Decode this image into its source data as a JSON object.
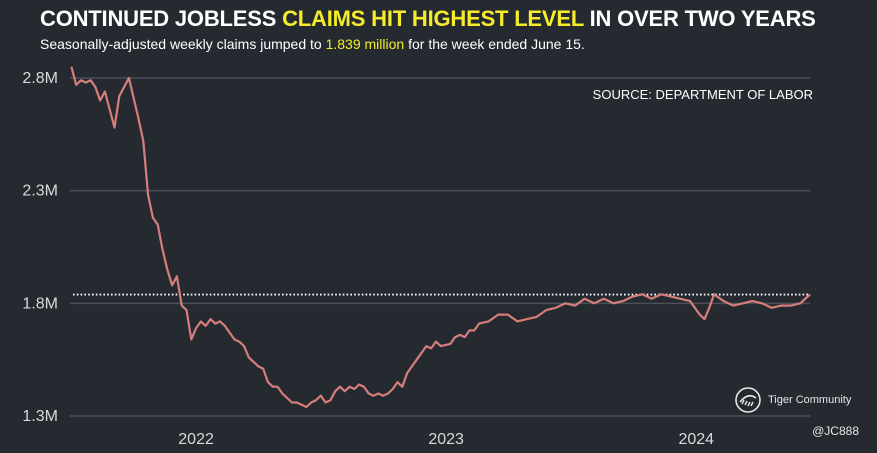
{
  "header": {
    "title_a": "CONTINUED JOBLESS ",
    "title_hl": "CLAIMS HIT HIGHEST LEVEL",
    "title_b": " IN OVER TWO YEARS",
    "subtitle_a": "Seasonally-adjusted weekly claims jumped to ",
    "subtitle_hl": "1.839 million",
    "subtitle_b": " for the week ended June 15."
  },
  "source": "SOURCE: DEPARTMENT OF LABOR",
  "watermark": {
    "brand": "Tiger Community",
    "logo_icon": "tiger-community-logo-icon"
  },
  "handle": "@JC888",
  "colors": {
    "background": "#252a31",
    "line": "#d67e7b",
    "highlight": "#f5ec2c",
    "grid": "#4b5058",
    "reference": "#ffffff"
  },
  "chart_data": {
    "type": "line",
    "title": "CONTINUED JOBLESS CLAIMS HIT HIGHEST LEVEL IN OVER TWO YEARS",
    "subtitle": "Seasonally-adjusted weekly claims jumped to 1.839 million for the week ended June 15.",
    "ylim": [
      1.3,
      2.8
    ],
    "yticks": [
      1.3,
      1.8,
      2.3,
      2.8
    ],
    "ytick_labels": [
      "1.3M",
      "1.8M",
      "2.3M",
      "2.8M"
    ],
    "x_range": [
      "2021-07-01",
      "2024-06-15"
    ],
    "xticks": [
      "2022-01-01",
      "2023-01-01",
      "2024-01-01"
    ],
    "xtick_labels": [
      "2022",
      "2023",
      "2024"
    ],
    "reference_line": {
      "value": 1.839,
      "style": "dotted"
    },
    "grid": "horizontal",
    "series": [
      {
        "values": [
          [
            "2021-07-03",
            2.85
          ],
          [
            "2021-07-10",
            2.77
          ],
          [
            "2021-07-17",
            2.79
          ],
          [
            "2021-07-24",
            2.78
          ],
          [
            "2021-07-31",
            2.79
          ],
          [
            "2021-08-07",
            2.76
          ],
          [
            "2021-08-14",
            2.7
          ],
          [
            "2021-08-21",
            2.74
          ],
          [
            "2021-08-28",
            2.66
          ],
          [
            "2021-09-04",
            2.58
          ],
          [
            "2021-09-11",
            2.72
          ],
          [
            "2021-09-18",
            2.76
          ],
          [
            "2021-09-25",
            2.8
          ],
          [
            "2021-10-02",
            2.71
          ],
          [
            "2021-10-09",
            2.62
          ],
          [
            "2021-10-16",
            2.52
          ],
          [
            "2021-10-23",
            2.28
          ],
          [
            "2021-10-30",
            2.18
          ],
          [
            "2021-11-06",
            2.15
          ],
          [
            "2021-11-13",
            2.04
          ],
          [
            "2021-11-20",
            1.95
          ],
          [
            "2021-11-27",
            1.88
          ],
          [
            "2021-12-04",
            1.92
          ],
          [
            "2021-12-11",
            1.79
          ],
          [
            "2021-12-18",
            1.77
          ],
          [
            "2021-12-25",
            1.64
          ],
          [
            "2022-01-01",
            1.69
          ],
          [
            "2022-01-08",
            1.72
          ],
          [
            "2022-01-15",
            1.7
          ],
          [
            "2022-01-22",
            1.73
          ],
          [
            "2022-01-29",
            1.71
          ],
          [
            "2022-02-05",
            1.72
          ],
          [
            "2022-02-12",
            1.7
          ],
          [
            "2022-02-19",
            1.67
          ],
          [
            "2022-02-26",
            1.64
          ],
          [
            "2022-03-05",
            1.63
          ],
          [
            "2022-03-12",
            1.61
          ],
          [
            "2022-03-19",
            1.56
          ],
          [
            "2022-03-26",
            1.54
          ],
          [
            "2022-04-02",
            1.52
          ],
          [
            "2022-04-09",
            1.51
          ],
          [
            "2022-04-16",
            1.45
          ],
          [
            "2022-04-23",
            1.43
          ],
          [
            "2022-04-30",
            1.43
          ],
          [
            "2022-05-07",
            1.4
          ],
          [
            "2022-05-14",
            1.38
          ],
          [
            "2022-05-21",
            1.36
          ],
          [
            "2022-05-28",
            1.36
          ],
          [
            "2022-06-04",
            1.35
          ],
          [
            "2022-06-11",
            1.34
          ],
          [
            "2022-06-18",
            1.36
          ],
          [
            "2022-06-25",
            1.37
          ],
          [
            "2022-07-02",
            1.39
          ],
          [
            "2022-07-09",
            1.36
          ],
          [
            "2022-07-16",
            1.37
          ],
          [
            "2022-07-23",
            1.41
          ],
          [
            "2022-07-30",
            1.43
          ],
          [
            "2022-08-06",
            1.41
          ],
          [
            "2022-08-13",
            1.43
          ],
          [
            "2022-08-20",
            1.42
          ],
          [
            "2022-08-27",
            1.44
          ],
          [
            "2022-09-03",
            1.43
          ],
          [
            "2022-09-10",
            1.4
          ],
          [
            "2022-09-17",
            1.39
          ],
          [
            "2022-09-24",
            1.4
          ],
          [
            "2022-10-01",
            1.39
          ],
          [
            "2022-10-08",
            1.4
          ],
          [
            "2022-10-15",
            1.42
          ],
          [
            "2022-10-22",
            1.45
          ],
          [
            "2022-10-29",
            1.43
          ],
          [
            "2022-11-05",
            1.49
          ],
          [
            "2022-11-12",
            1.52
          ],
          [
            "2022-11-19",
            1.55
          ],
          [
            "2022-11-26",
            1.58
          ],
          [
            "2022-12-03",
            1.61
          ],
          [
            "2022-12-10",
            1.6
          ],
          [
            "2022-12-17",
            1.63
          ],
          [
            "2022-12-24",
            1.61
          ],
          [
            "2023-01-07",
            1.62
          ],
          [
            "2023-01-14",
            1.65
          ],
          [
            "2023-01-21",
            1.66
          ],
          [
            "2023-01-28",
            1.65
          ],
          [
            "2023-02-04",
            1.68
          ],
          [
            "2023-02-11",
            1.68
          ],
          [
            "2023-02-18",
            1.71
          ],
          [
            "2023-03-04",
            1.72
          ],
          [
            "2023-03-18",
            1.75
          ],
          [
            "2023-04-01",
            1.75
          ],
          [
            "2023-04-15",
            1.72
          ],
          [
            "2023-04-29",
            1.73
          ],
          [
            "2023-05-13",
            1.74
          ],
          [
            "2023-05-27",
            1.77
          ],
          [
            "2023-06-10",
            1.78
          ],
          [
            "2023-06-24",
            1.8
          ],
          [
            "2023-07-08",
            1.79
          ],
          [
            "2023-07-22",
            1.82
          ],
          [
            "2023-08-05",
            1.8
          ],
          [
            "2023-08-19",
            1.82
          ],
          [
            "2023-09-02",
            1.8
          ],
          [
            "2023-09-16",
            1.81
          ],
          [
            "2023-09-30",
            1.83
          ],
          [
            "2023-10-14",
            1.84
          ],
          [
            "2023-10-28",
            1.82
          ],
          [
            "2023-11-11",
            1.84
          ],
          [
            "2023-11-25",
            1.83
          ],
          [
            "2023-12-09",
            1.82
          ],
          [
            "2023-12-23",
            1.81
          ],
          [
            "2024-01-06",
            1.75
          ],
          [
            "2024-01-13",
            1.73
          ],
          [
            "2024-01-20",
            1.78
          ],
          [
            "2024-01-27",
            1.84
          ],
          [
            "2024-02-10",
            1.81
          ],
          [
            "2024-02-24",
            1.79
          ],
          [
            "2024-03-09",
            1.8
          ],
          [
            "2024-03-23",
            1.81
          ],
          [
            "2024-04-06",
            1.8
          ],
          [
            "2024-04-20",
            1.78
          ],
          [
            "2024-05-04",
            1.79
          ],
          [
            "2024-05-18",
            1.79
          ],
          [
            "2024-06-01",
            1.8
          ],
          [
            "2024-06-08",
            1.82
          ],
          [
            "2024-06-15",
            1.839
          ]
        ]
      }
    ]
  }
}
